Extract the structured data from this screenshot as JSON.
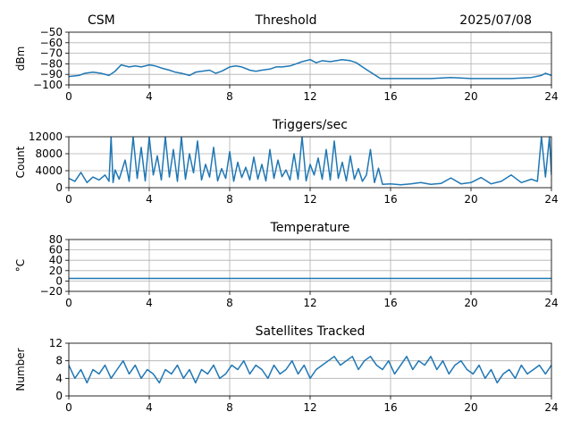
{
  "header": {
    "left": "CSM",
    "center": "Threshold",
    "right": "2025/07/08"
  },
  "colors": {
    "series": "#1f77b4",
    "grid": "#b0b0b0"
  },
  "chart_data": [
    {
      "id": "threshold",
      "type": "line",
      "title": "",
      "ylabel": "dBm",
      "xlim": [
        0,
        24
      ],
      "ylim": [
        -100,
        -50
      ],
      "xticks": [
        0,
        4,
        8,
        12,
        16,
        20,
        24
      ],
      "yticks": [
        -100,
        -90,
        -80,
        -70,
        -60,
        -50
      ],
      "ytick_labels": [
        "−100",
        "−90",
        "−80",
        "−70",
        "−60",
        "−50"
      ],
      "grid": true,
      "series": [
        {
          "x": [
            0,
            0.5,
            0.8,
            1.2,
            1.6,
            2,
            2.3,
            2.6,
            3,
            3.3,
            3.6,
            4,
            4.3,
            4.6,
            5,
            5.3,
            5.6,
            6,
            6.3,
            6.6,
            7,
            7.3,
            7.6,
            8,
            8.3,
            8.6,
            9,
            9.3,
            9.6,
            10,
            10.3,
            10.6,
            11,
            11.3,
            11.6,
            12,
            12.3,
            12.6,
            13,
            13.3,
            13.6,
            14,
            14.3,
            14.6,
            15,
            15.5,
            16,
            17,
            18,
            19,
            20,
            21,
            22,
            23,
            23.5,
            23.7,
            24
          ],
          "y": [
            -92,
            -91,
            -89,
            -88,
            -89,
            -91,
            -87,
            -81,
            -83,
            -82,
            -83,
            -81,
            -82,
            -84,
            -86,
            -88,
            -89,
            -91,
            -88,
            -87,
            -86,
            -89,
            -87,
            -83,
            -82,
            -83,
            -86,
            -87,
            -86,
            -85,
            -83,
            -83,
            -82,
            -80,
            -78,
            -76,
            -79,
            -77,
            -78,
            -77,
            -76,
            -77,
            -79,
            -83,
            -88,
            -94,
            -94,
            -94,
            -94,
            -93,
            -94,
            -94,
            -94,
            -93,
            -91,
            -89,
            -91
          ]
        }
      ]
    },
    {
      "id": "triggers",
      "type": "line",
      "title": "Triggers/sec",
      "ylabel": "Count",
      "xlim": [
        0,
        24
      ],
      "ylim": [
        0,
        12000
      ],
      "xticks": [
        0,
        4,
        8,
        12,
        16,
        20,
        24
      ],
      "yticks": [
        0,
        4000,
        8000,
        12000
      ],
      "ytick_labels": [
        "0",
        "4000",
        "8000",
        "12000"
      ],
      "grid": true,
      "series": [
        {
          "x": [
            0,
            0.3,
            0.6,
            0.9,
            1.2,
            1.5,
            1.8,
            2.0,
            2.1,
            2.2,
            2.3,
            2.5,
            2.8,
            3.0,
            3.2,
            3.4,
            3.6,
            3.8,
            4.0,
            4.2,
            4.4,
            4.6,
            4.8,
            5.0,
            5.2,
            5.4,
            5.6,
            5.8,
            6.0,
            6.2,
            6.4,
            6.6,
            6.8,
            7.0,
            7.2,
            7.4,
            7.6,
            7.8,
            8.0,
            8.2,
            8.4,
            8.6,
            8.8,
            9.0,
            9.2,
            9.4,
            9.6,
            9.8,
            10.0,
            10.2,
            10.4,
            10.6,
            10.8,
            11.0,
            11.2,
            11.4,
            11.6,
            11.8,
            12.0,
            12.2,
            12.4,
            12.6,
            12.8,
            13.0,
            13.2,
            13.4,
            13.6,
            13.8,
            14.0,
            14.2,
            14.4,
            14.6,
            14.8,
            15.0,
            15.2,
            15.4,
            15.6,
            16.0,
            16.5,
            17.0,
            17.5,
            18.0,
            18.5,
            19.0,
            19.5,
            20.0,
            20.5,
            21.0,
            21.5,
            22.0,
            22.5,
            23.0,
            23.3,
            23.5,
            23.7,
            23.9,
            24.0
          ],
          "y": [
            2200,
            1500,
            3600,
            1200,
            2500,
            1800,
            3000,
            1500,
            12000,
            1200,
            4200,
            2000,
            6500,
            1500,
            12000,
            2200,
            9500,
            1600,
            12000,
            3000,
            7500,
            1800,
            12000,
            2500,
            9000,
            1500,
            12000,
            2000,
            8000,
            3500,
            11000,
            1800,
            5500,
            2500,
            9500,
            1600,
            4500,
            2200,
            8500,
            1500,
            6000,
            2400,
            4800,
            1800,
            7200,
            2000,
            5500,
            1600,
            9000,
            2200,
            6500,
            2600,
            4200,
            1800,
            8000,
            2000,
            12000,
            1600,
            5500,
            3000,
            7000,
            2000,
            9000,
            1800,
            11000,
            2200,
            6000,
            1600,
            7500,
            2000,
            4500,
            1500,
            3000,
            9000,
            1200,
            4600,
            800,
            900,
            700,
            900,
            1200,
            800,
            1000,
            2300,
            900,
            1200,
            2400,
            900,
            1500,
            3000,
            1200,
            2000,
            1500,
            12000,
            2500,
            12000,
            3000
          ]
        }
      ]
    },
    {
      "id": "temperature",
      "type": "line",
      "title": "Temperature",
      "ylabel": "°C",
      "xlim": [
        0,
        24
      ],
      "ylim": [
        -20,
        80
      ],
      "xticks": [
        0,
        4,
        8,
        12,
        16,
        20,
        24
      ],
      "yticks": [
        -20,
        0,
        20,
        40,
        60,
        80
      ],
      "ytick_labels": [
        "−20",
        "0",
        "20",
        "40",
        "60",
        "80"
      ],
      "grid": true,
      "series": [
        {
          "x": [
            0,
            24
          ],
          "y": [
            5,
            5
          ]
        }
      ]
    },
    {
      "id": "satellites",
      "type": "line",
      "title": "Satellites Tracked",
      "ylabel": "Number",
      "xlim": [
        0,
        24
      ],
      "ylim": [
        0,
        12
      ],
      "xticks": [
        0,
        4,
        8,
        12,
        16,
        20,
        24
      ],
      "yticks": [
        0,
        4,
        8,
        12
      ],
      "ytick_labels": [
        "0",
        "4",
        "8",
        "12"
      ],
      "grid": true,
      "series": [
        {
          "x": [
            0,
            0.3,
            0.6,
            0.9,
            1.2,
            1.5,
            1.8,
            2.1,
            2.4,
            2.7,
            3.0,
            3.3,
            3.6,
            3.9,
            4.2,
            4.5,
            4.8,
            5.1,
            5.4,
            5.7,
            6.0,
            6.3,
            6.6,
            6.9,
            7.2,
            7.5,
            7.8,
            8.1,
            8.4,
            8.7,
            9.0,
            9.3,
            9.6,
            9.9,
            10.2,
            10.5,
            10.8,
            11.1,
            11.4,
            11.7,
            12.0,
            12.3,
            12.6,
            12.9,
            13.2,
            13.5,
            13.8,
            14.1,
            14.4,
            14.7,
            15.0,
            15.3,
            15.6,
            15.9,
            16.2,
            16.5,
            16.8,
            17.1,
            17.4,
            17.7,
            18.0,
            18.3,
            18.6,
            18.9,
            19.2,
            19.5,
            19.8,
            20.1,
            20.4,
            20.7,
            21.0,
            21.3,
            21.6,
            21.9,
            22.2,
            22.5,
            22.8,
            23.1,
            23.4,
            23.7,
            24.0
          ],
          "y": [
            7,
            4,
            6,
            3,
            6,
            5,
            7,
            4,
            6,
            8,
            5,
            7,
            4,
            6,
            5,
            3,
            6,
            5,
            7,
            4,
            6,
            3,
            6,
            5,
            7,
            4,
            5,
            7,
            6,
            8,
            5,
            7,
            6,
            4,
            7,
            5,
            6,
            8,
            5,
            7,
            4,
            6,
            7,
            8,
            9,
            7,
            8,
            9,
            6,
            8,
            9,
            7,
            6,
            8,
            5,
            7,
            9,
            6,
            8,
            7,
            9,
            6,
            8,
            5,
            7,
            8,
            6,
            5,
            7,
            4,
            6,
            3,
            5,
            6,
            4,
            7,
            5,
            6,
            7,
            5,
            7
          ]
        }
      ]
    }
  ]
}
